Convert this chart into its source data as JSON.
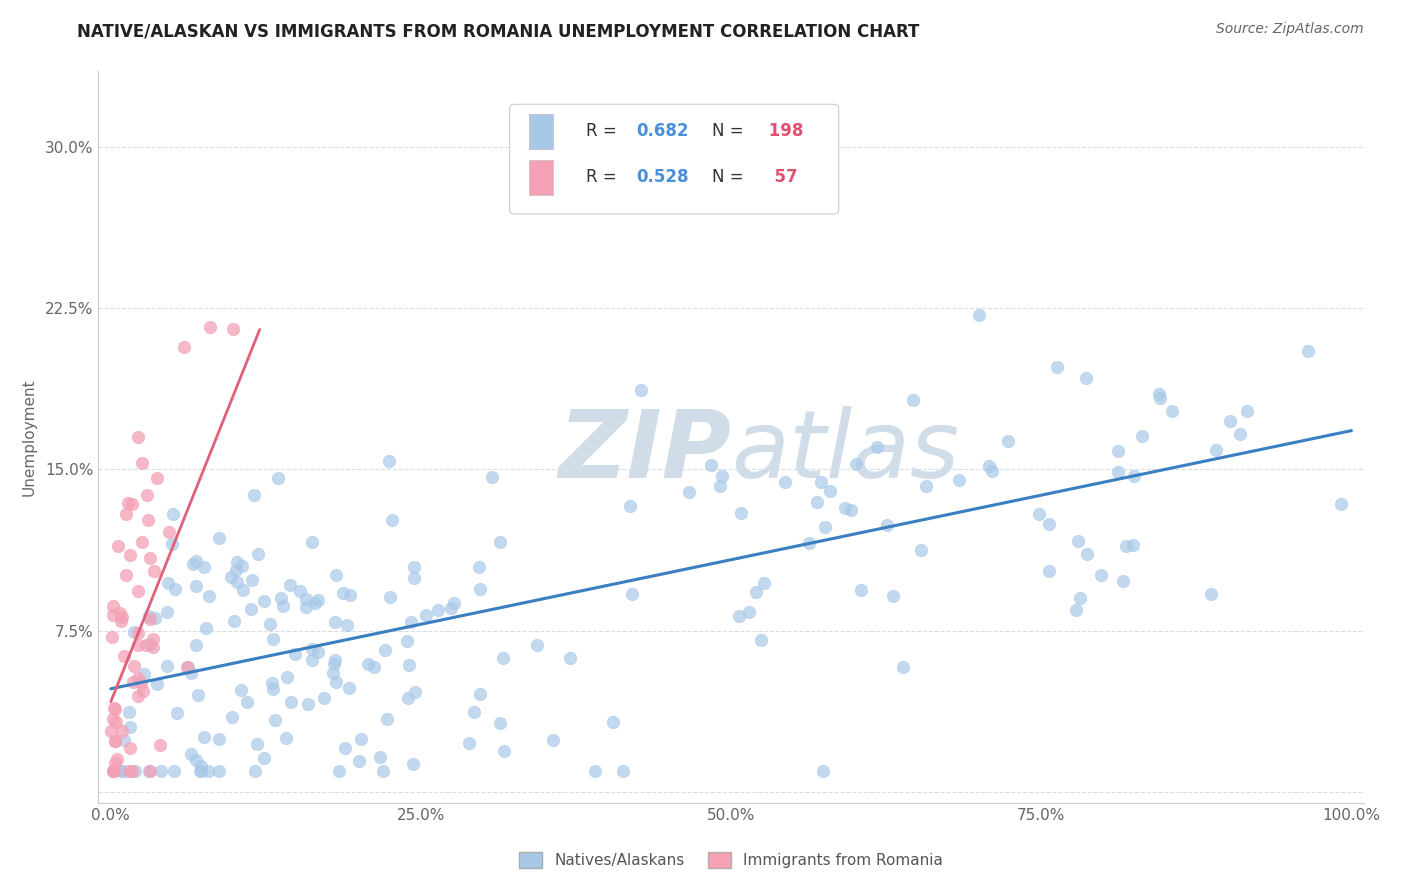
{
  "title": "NATIVE/ALASKAN VS IMMIGRANTS FROM ROMANIA UNEMPLOYMENT CORRELATION CHART",
  "source": "Source: ZipAtlas.com",
  "ylabel": "Unemployment",
  "xlim": [
    -0.01,
    1.01
  ],
  "ylim": [
    -0.005,
    0.335
  ],
  "x_ticks": [
    0.0,
    0.25,
    0.5,
    0.75,
    1.0
  ],
  "x_tick_labels": [
    "0.0%",
    "25.0%",
    "50.0%",
    "75.0%",
    "100.0%"
  ],
  "y_ticks": [
    0.0,
    0.075,
    0.15,
    0.225,
    0.3
  ],
  "y_tick_labels": [
    "",
    "7.5%",
    "15.0%",
    "22.5%",
    "30.0%"
  ],
  "blue_R": 0.682,
  "blue_N": 198,
  "pink_R": 0.528,
  "pink_N": 57,
  "blue_color": "#a8c8e8",
  "blue_line_color": "#3a7fc1",
  "pink_color": "#f4a0b5",
  "pink_line_color": "#e0607a",
  "watermark_color": "#d0dde8",
  "background_color": "#ffffff",
  "grid_color": "#d5dde5",
  "legend_R_color": "#4a90d9",
  "legend_N_color": "#e05070",
  "blue_trendline_x": [
    0.0,
    1.0
  ],
  "blue_trendline_y": [
    0.048,
    0.168
  ],
  "pink_trendline_x": [
    0.0,
    0.12
  ],
  "pink_trendline_y": [
    0.042,
    0.215
  ]
}
